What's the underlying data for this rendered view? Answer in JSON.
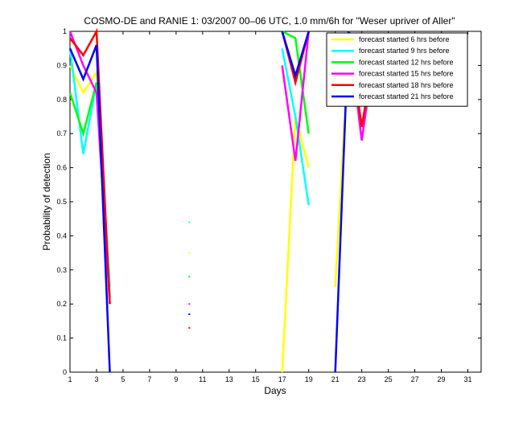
{
  "chart_data": {
    "type": "line",
    "title": "COSMO-DE and RANIE 1: 03/2007 00–06 UTC, 1.0 mm/6h for \"Weser upriver of Aller\"",
    "xlabel": "Days",
    "ylabel": "Probability of detection",
    "xlim": [
      1,
      32
    ],
    "ylim": [
      0,
      1
    ],
    "xticks": [
      1,
      3,
      5,
      7,
      9,
      11,
      13,
      15,
      17,
      19,
      21,
      23,
      25,
      27,
      29,
      31
    ],
    "yticks": [
      0,
      0.1,
      0.2,
      0.3,
      0.4,
      0.5,
      0.6,
      0.7,
      0.8,
      0.9,
      1
    ],
    "ytick_labels": [
      "0",
      "0.1",
      "0.2",
      "0.3",
      "0.4",
      "0.5",
      "0.6",
      "0.7",
      "0.8",
      "0.9",
      "1"
    ],
    "grid": false,
    "legend_position": "top-right",
    "series": [
      {
        "name": "forecast started 6 hrs before",
        "color": "#ffff00",
        "segments": [
          [
            [
              1,
              0.9
            ],
            [
              2,
              0.82
            ],
            [
              3,
              0.88
            ],
            [
              4,
              0.25
            ]
          ],
          [
            [
              17,
              0.0
            ],
            [
              18,
              0.75
            ],
            [
              19,
              0.6
            ]
          ],
          [
            [
              21,
              0.25
            ],
            [
              22,
              0.95
            ],
            [
              23,
              0.96
            ],
            [
              24,
              0.95
            ]
          ]
        ],
        "points": [
          [
            10,
            0.35
          ]
        ]
      },
      {
        "name": "forecast started 9 hrs before",
        "color": "#00ffff",
        "segments": [
          [
            [
              1,
              0.95
            ],
            [
              2,
              0.64
            ],
            [
              3,
              0.85
            ],
            [
              4,
              0.25
            ]
          ],
          [
            [
              17,
              0.95
            ],
            [
              18,
              0.75
            ],
            [
              19,
              0.49
            ]
          ],
          [
            [
              22,
              0.98
            ],
            [
              23,
              0.93
            ],
            [
              24,
              0.96
            ]
          ]
        ],
        "points": [
          [
            10,
            0.44
          ]
        ]
      },
      {
        "name": "forecast started 12 hrs before",
        "color": "#00ff00",
        "segments": [
          [
            [
              1,
              0.82
            ],
            [
              2,
              0.7
            ],
            [
              3,
              0.85
            ],
            [
              4,
              0.22
            ]
          ],
          [
            [
              17,
              1.0
            ],
            [
              18,
              0.98
            ],
            [
              19,
              0.7
            ]
          ],
          [
            [
              22,
              1.0
            ],
            [
              23,
              0.95
            ],
            [
              24,
              0.95
            ]
          ]
        ],
        "points": [
          [
            10,
            0.28
          ]
        ]
      },
      {
        "name": "forecast started 15 hrs before",
        "color": "#ff00ff",
        "segments": [
          [
            [
              1,
              1.0
            ],
            [
              2,
              0.9
            ],
            [
              3,
              0.82
            ],
            [
              4,
              0.2
            ]
          ],
          [
            [
              17,
              0.9
            ],
            [
              18,
              0.62
            ],
            [
              19,
              1.0
            ]
          ],
          [
            [
              22,
              1.0
            ],
            [
              23,
              0.68
            ],
            [
              24,
              0.95
            ]
          ]
        ],
        "points": [
          [
            10,
            0.2
          ]
        ]
      },
      {
        "name": "forecast started 18 hrs before",
        "color": "#ff0000",
        "segments": [
          [
            [
              1,
              0.98
            ],
            [
              2,
              0.93
            ],
            [
              3,
              1.0
            ],
            [
              4,
              0.2
            ]
          ],
          [
            [
              17,
              1.0
            ],
            [
              18,
              0.85
            ],
            [
              19,
              1.0
            ]
          ],
          [
            [
              22,
              1.0
            ],
            [
              23,
              0.72
            ],
            [
              24,
              0.95
            ]
          ]
        ],
        "points": [
          [
            10,
            0.13
          ]
        ]
      },
      {
        "name": "forecast started 21 hrs before",
        "color": "#0000ff",
        "segments": [
          [
            [
              1,
              0.95
            ],
            [
              2,
              0.86
            ],
            [
              3,
              0.96
            ],
            [
              4,
              0.0
            ]
          ],
          [
            [
              17,
              1.0
            ],
            [
              18,
              0.87
            ],
            [
              19,
              1.0
            ]
          ],
          [
            [
              21,
              0.0
            ],
            [
              22,
              1.0
            ],
            [
              23,
              0.82
            ],
            [
              24,
              0.95
            ]
          ]
        ],
        "points": [
          [
            10,
            0.17
          ]
        ]
      }
    ]
  }
}
